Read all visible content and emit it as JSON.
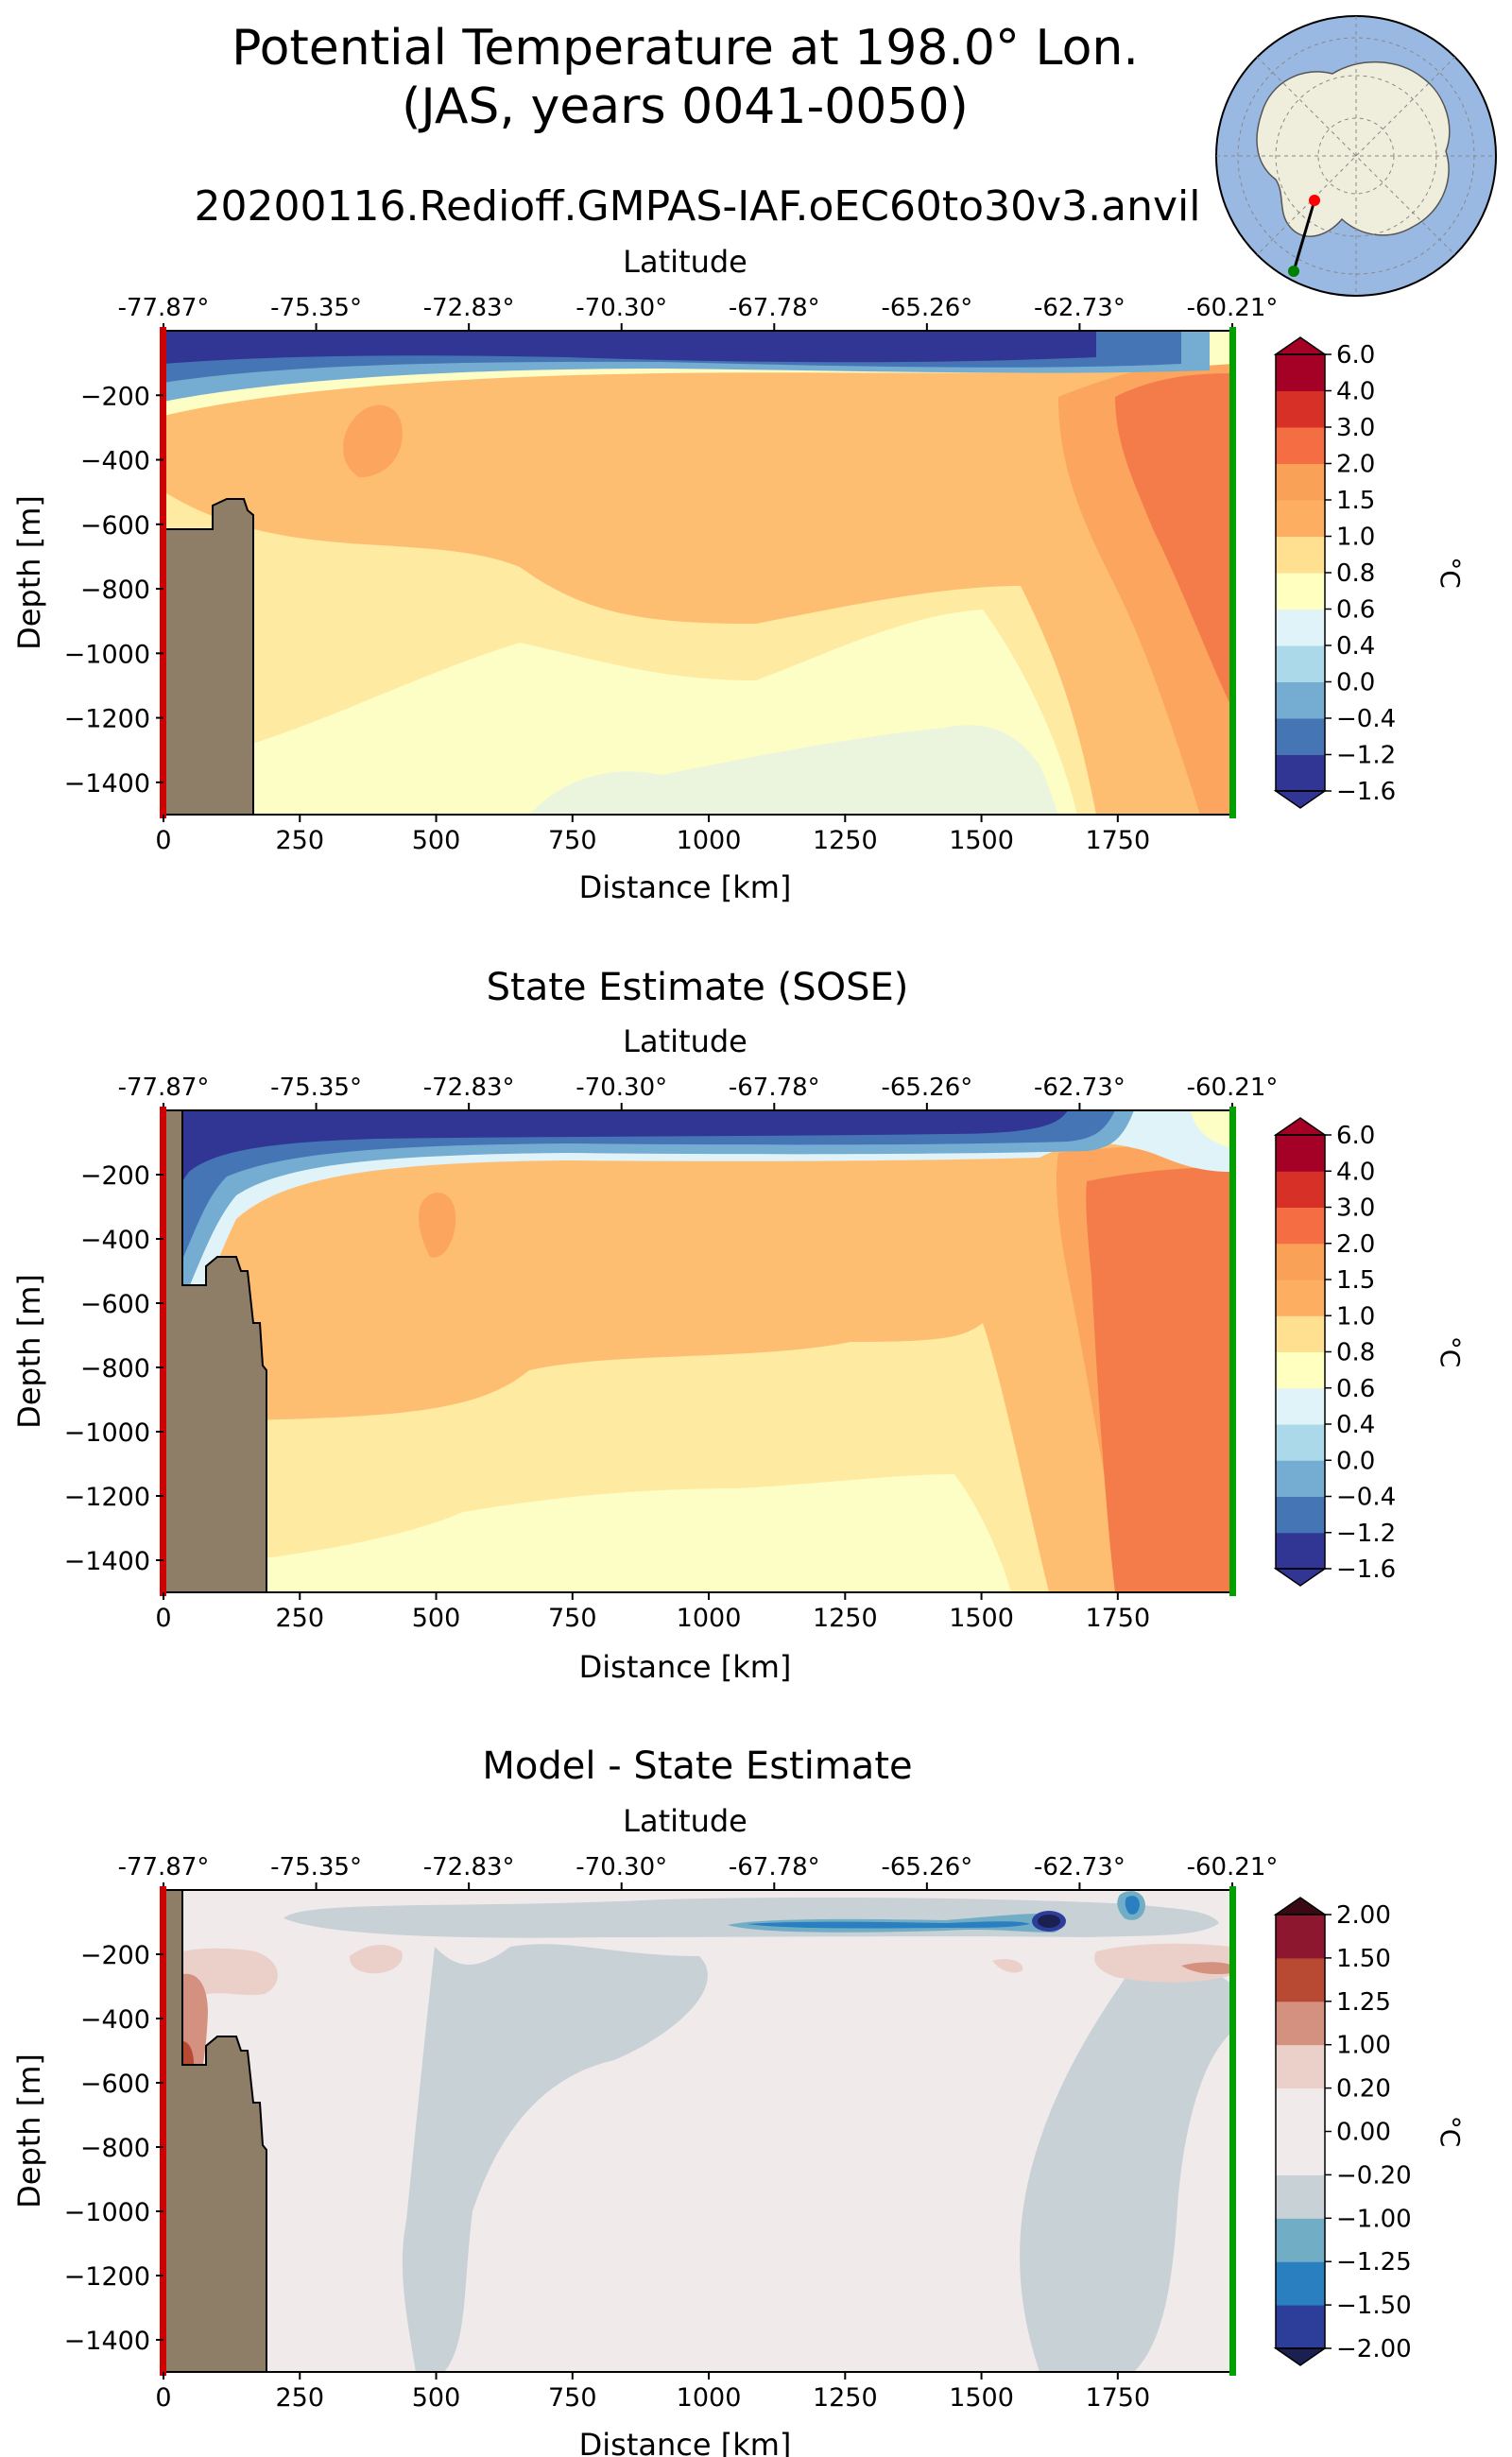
{
  "figure": {
    "title_line1": "Potential Temperature at 198.0° Lon.",
    "title_line2": "(JAS, years 0041-0050)",
    "run_name": "20200116.Redioff.GMPAS-IAF.oEC60to30v3.anvil"
  },
  "inset_map": {
    "description_icon": "antarctica-polar-map-icon",
    "ocean_color": "#9ab9e2",
    "land_color": "#efeedd",
    "start_marker_color": "#ff0000",
    "end_marker_color": "#008000"
  },
  "colors": {
    "bathymetry": "#8f7e67",
    "start_edge": "#d00000",
    "end_edge": "#00a000"
  },
  "chart_data": [
    {
      "type": "contourf",
      "title": "",
      "xlabel": "Distance [km]",
      "ylabel": "Depth [m]",
      "top_axis_label": "Latitude",
      "xlim": [
        0,
        1960
      ],
      "ylim": [
        -1500,
        0
      ],
      "x_ticks": [
        0,
        250,
        500,
        750,
        1000,
        1250,
        1500,
        1750
      ],
      "y_ticks": [
        -200,
        -400,
        -600,
        -800,
        -1000,
        -1200,
        -1400
      ],
      "top_ticks": [
        "-77.87°",
        "-75.35°",
        "-72.83°",
        "-70.30°",
        "-67.78°",
        "-65.26°",
        "-62.73°",
        "-60.21°"
      ],
      "colorbar": {
        "label": "°C",
        "levels": [
          "-1.6",
          "-1.2",
          "-0.4",
          "0.0",
          "0.4",
          "0.6",
          "0.8",
          "1.0",
          "1.5",
          "2.0",
          "3.0",
          "4.0",
          "6.0"
        ],
        "colors": [
          "#313695",
          "#4575b4",
          "#74add1",
          "#abd9e9",
          "#e0f3f8",
          "#ffffbf",
          "#fee090",
          "#fdae61",
          "#f9a257",
          "#f46d43",
          "#d73027",
          "#a50026"
        ],
        "extend_low": "#313695",
        "extend_high": "#a50026"
      },
      "layers": [
        {
          "level": "1.0 to 1.5",
          "color": "#fdbe72"
        },
        {
          "level": "1.5 to 2.0",
          "color": "#fba55e"
        },
        {
          "level": "2.0 to 3.0",
          "color": "#f47c4a"
        },
        {
          "level": "0.8 to 1.0",
          "color": "#feeaa1"
        },
        {
          "level": "0.6 to 0.8",
          "color": "#fdfdc6"
        },
        {
          "level": "0.4 to 0.6",
          "color": "#ebf5de"
        },
        {
          "level": "below -1.6 (surface)",
          "color": "#313695"
        }
      ],
      "bathymetry_shelf_km": [
        0,
        160
      ],
      "bathymetry_top_m": -530
    },
    {
      "type": "contourf",
      "title": "State Estimate (SOSE)",
      "xlabel": "Distance [km]",
      "ylabel": "Depth [m]",
      "top_axis_label": "Latitude",
      "xlim": [
        0,
        1960
      ],
      "ylim": [
        -1500,
        0
      ],
      "x_ticks": [
        0,
        250,
        500,
        750,
        1000,
        1250,
        1500,
        1750
      ],
      "y_ticks": [
        -200,
        -400,
        -600,
        -800,
        -1000,
        -1200,
        -1400
      ],
      "top_ticks": [
        "-77.87°",
        "-75.35°",
        "-72.83°",
        "-70.30°",
        "-67.78°",
        "-65.26°",
        "-62.73°",
        "-60.21°"
      ],
      "colorbar": {
        "label": "°C",
        "levels": [
          "-1.6",
          "-1.2",
          "-0.4",
          "0.0",
          "0.4",
          "0.6",
          "0.8",
          "1.0",
          "1.5",
          "2.0",
          "3.0",
          "4.0",
          "6.0"
        ],
        "colors": [
          "#313695",
          "#4575b4",
          "#74add1",
          "#abd9e9",
          "#e0f3f8",
          "#ffffbf",
          "#fee090",
          "#fdae61",
          "#f9a257",
          "#f46d43",
          "#d73027",
          "#a50026"
        ],
        "extend_low": "#313695",
        "extend_high": "#a50026"
      },
      "layers": [
        {
          "level": "1.0 to 1.5",
          "color": "#fdbe72"
        },
        {
          "level": "1.5 to 2.0",
          "color": "#fba55e"
        },
        {
          "level": "2.0 to 3.0",
          "color": "#f47c4a"
        },
        {
          "level": "0.8 to 1.0",
          "color": "#feeaa1"
        },
        {
          "level": "0.6 to 0.8",
          "color": "#fdfdc6"
        },
        {
          "level": "below -1.6 (surface)",
          "color": "#313695"
        }
      ],
      "bathymetry_shelf_km": [
        0,
        180
      ],
      "bathymetry_top_m": -440
    },
    {
      "type": "contourf",
      "title": "Model - State Estimate",
      "xlabel": "Distance [km]",
      "ylabel": "Depth [m]",
      "top_axis_label": "Latitude",
      "xlim": [
        0,
        1960
      ],
      "ylim": [
        -1500,
        0
      ],
      "x_ticks": [
        0,
        250,
        500,
        750,
        1000,
        1250,
        1500,
        1750
      ],
      "y_ticks": [
        -200,
        -400,
        -600,
        -800,
        -1000,
        -1200,
        -1400
      ],
      "top_ticks": [
        "-77.87°",
        "-75.35°",
        "-72.83°",
        "-70.30°",
        "-67.78°",
        "-65.26°",
        "-62.73°",
        "-60.21°"
      ],
      "colorbar": {
        "label": "°C",
        "levels": [
          "-2.00",
          "-1.50",
          "-1.25",
          "-1.00",
          "-0.20",
          "0.00",
          "0.20",
          "1.00",
          "1.25",
          "1.50",
          "2.00"
        ],
        "colors": [
          "#2c3e9a",
          "#2a7fc0",
          "#72adc6",
          "#c7d1d6",
          "#f1eaea",
          "#f0eaea",
          "#ead0c9",
          "#d49180",
          "#b84a34",
          "#8e1730"
        ],
        "extend_low": "#1b2050",
        "extend_high": "#3a0a14"
      },
      "layers": [
        {
          "level": "-0.20 to -1.00",
          "color": "#c7d1d6"
        },
        {
          "level": "0.20 to 1.00",
          "color": "#ead0c9"
        },
        {
          "level": "1.00 to 1.25",
          "color": "#d49180"
        },
        {
          "level": "-1.25 to -1.50",
          "color": "#2a7fc0"
        },
        {
          "level": "below -2.00",
          "color": "#1b2050"
        }
      ],
      "bathymetry_shelf_km": [
        0,
        180
      ],
      "bathymetry_top_m": -440
    }
  ]
}
